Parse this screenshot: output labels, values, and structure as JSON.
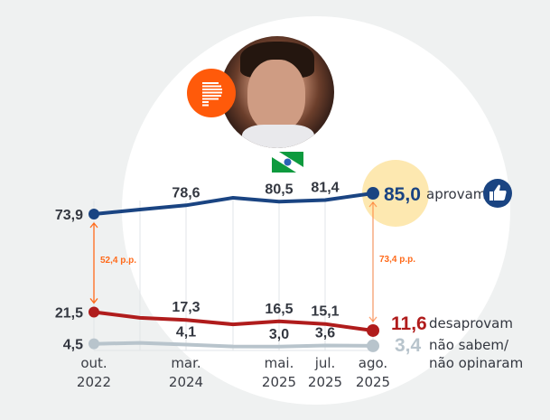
{
  "icons": {
    "logo": "poder-p-logo-icon",
    "photo": "governor-portrait",
    "flag": "parana-flag-icon",
    "thumbs_up": "thumbs-up-icon"
  },
  "colors": {
    "approve": "#1a4482",
    "disapprove": "#b01c1c",
    "dont_know": "#b8c4cc",
    "gap": "#ff6a1a",
    "highlight": "#fde8b0",
    "logo": "#ff5a0a"
  },
  "chart_data": {
    "type": "line",
    "title": "",
    "xlabel": "",
    "ylabel": "",
    "ylim": [
      0,
      90
    ],
    "grid": "vertical",
    "x": [
      "out. 2022",
      "",
      "mar. 2024",
      "",
      "mai. 2025",
      "jul. 2025",
      "ago. 2025"
    ],
    "x_labels": [
      {
        "top": "out.",
        "bottom": "2022"
      },
      {
        "top": "",
        "bottom": ""
      },
      {
        "top": "mar.",
        "bottom": "2024"
      },
      {
        "top": "",
        "bottom": ""
      },
      {
        "top": "mai.",
        "bottom": "2025"
      },
      {
        "top": "jul.",
        "bottom": "2025"
      },
      {
        "top": "ago.",
        "bottom": "2025"
      }
    ],
    "series": [
      {
        "name": "aprovam",
        "values": [
          73.9,
          76.3,
          78.6,
          82.6,
          80.5,
          81.4,
          85.0
        ],
        "labels": [
          "73,9",
          "",
          "78,6",
          "",
          "80,5",
          "81,4",
          ""
        ],
        "final_label": "85,0",
        "legend": "aprovam"
      },
      {
        "name": "desaprovam",
        "values": [
          21.5,
          18.4,
          17.3,
          14.9,
          16.5,
          15.1,
          11.6
        ],
        "labels": [
          "21,5",
          "",
          "17,3",
          "",
          "16,5",
          "15,1",
          ""
        ],
        "final_label": "11,6",
        "legend": "desaprovam"
      },
      {
        "name": "não sabem/não opinaram",
        "values": [
          4.5,
          5.0,
          4.1,
          3.1,
          3.0,
          3.6,
          3.4
        ],
        "labels": [
          "4,5",
          "",
          "4,1",
          "",
          "3,0",
          "3,6",
          ""
        ],
        "final_label": "3,4",
        "legend_line1": "não sabem/",
        "legend_line2": "não opinaram"
      }
    ],
    "annotations": [
      {
        "text": "52,4 p.p.",
        "between": [
          "aprovam",
          "desaprovam"
        ],
        "at": "out. 2022"
      },
      {
        "text": "73,4 p.p.",
        "between": [
          "aprovam",
          "desaprovam"
        ],
        "at": "ago. 2025"
      }
    ]
  }
}
